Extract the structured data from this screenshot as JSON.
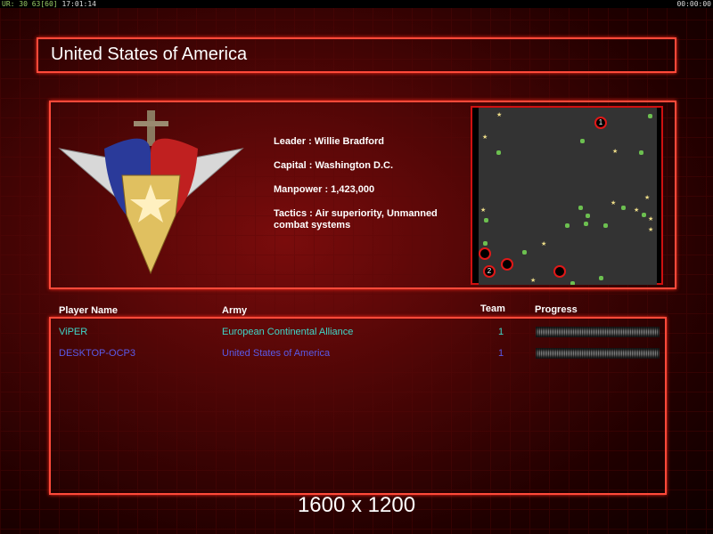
{
  "status_bar": {
    "left_fps": "UR: 30 63[60]",
    "left_time": "17:01:14",
    "right_time": "00:00:00"
  },
  "title": "United States of America",
  "faction": {
    "leader": "Leader : Willie Bradford",
    "capital": "Capital : Washington D.C.",
    "manpower": "Manpower : 1,423,000",
    "tactics": "Tactics : Air superiority, Unmanned combat systems"
  },
  "map": {
    "markers": [
      "1",
      "",
      "2",
      "",
      ""
    ]
  },
  "table": {
    "headers": {
      "player": "Player Name",
      "army": "Army",
      "team": "Team",
      "progress": "Progress"
    },
    "rows": [
      {
        "player": "ViPER",
        "army": "European Continental Alliance",
        "team": "1",
        "color": "#3fd6c8"
      },
      {
        "player": "DESKTOP-OCP3",
        "army": "United States of America",
        "team": "1",
        "color": "#5a5ae8"
      }
    ]
  },
  "resolution": "1600 x 1200"
}
